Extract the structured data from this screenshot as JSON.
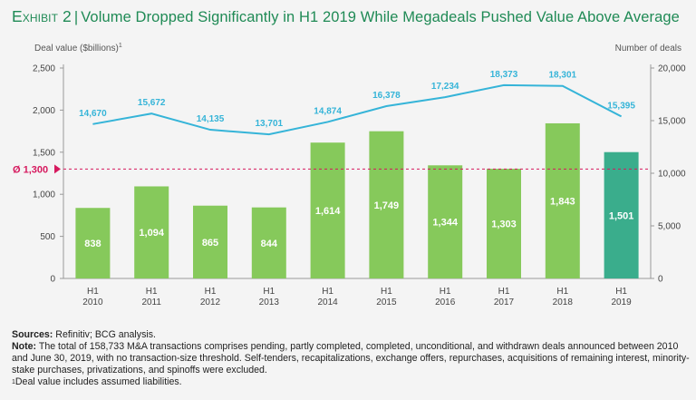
{
  "header": {
    "exhibit": "Exhibit 2",
    "separator": "|",
    "title": "Volume Dropped Significantly in H1 2019 While Megadeals Pushed Value Above Average"
  },
  "chart_data": {
    "type": "bar",
    "categories": [
      [
        "H1",
        "2010"
      ],
      [
        "H1",
        "2011"
      ],
      [
        "H1",
        "2012"
      ],
      [
        "H1",
        "2013"
      ],
      [
        "H1",
        "2014"
      ],
      [
        "H1",
        "2015"
      ],
      [
        "H1",
        "2016"
      ],
      [
        "H1",
        "2017"
      ],
      [
        "H1",
        "2018"
      ],
      [
        "H1",
        "2019"
      ]
    ],
    "series": [
      {
        "name": "Deal value ($billions)",
        "kind": "bar",
        "axis": "left",
        "values": [
          838,
          1094,
          865,
          844,
          1614,
          1749,
          1344,
          1303,
          1843,
          1501
        ],
        "labels": [
          "838",
          "1,094",
          "865",
          "844",
          "1,614",
          "1,749",
          "1,344",
          "1,303",
          "1,843",
          "1,501"
        ],
        "color": "#86c95b",
        "highlight_color": "#3aad8c",
        "highlight_index": 9
      },
      {
        "name": "Number of deals",
        "kind": "line",
        "axis": "right",
        "values": [
          14670,
          15672,
          14135,
          13701,
          14874,
          16378,
          17234,
          18373,
          18301,
          15395
        ],
        "labels": [
          "14,670",
          "15,672",
          "14,135",
          "13,701",
          "14,874",
          "16,378",
          "17,234",
          "18,373",
          "18,301",
          "15,395"
        ],
        "color": "#35b4d8"
      }
    ],
    "left_axis": {
      "label": "Deal value ($billions)",
      "label_sup": "1",
      "range": [
        0,
        2500
      ],
      "ticks": [
        0,
        500,
        1000,
        1500,
        2000,
        2500
      ],
      "tick_labels": [
        "0",
        "500",
        "1,000",
        "1,500",
        "2,000",
        "2,500"
      ]
    },
    "right_axis": {
      "label": "Number of deals",
      "range": [
        0,
        20000
      ],
      "ticks": [
        0,
        5000,
        10000,
        15000,
        20000
      ],
      "tick_labels": [
        "0",
        "5,000",
        "10,000",
        "15,000",
        "20,000"
      ]
    },
    "average": {
      "value": 1300,
      "label": "Ø 1,300",
      "color": "#d6195e"
    }
  },
  "notes": {
    "sources_label": "Sources:",
    "sources_text": "Refinitiv; BCG analysis.",
    "note_label": "Note:",
    "note_text": "The total of 158,733 M&A transactions comprises pending, partly completed, completed, unconditional, and withdrawn deals announced between 2010 and June 30, 2019, with no transaction-size threshold. Self-tenders, recapitalizations, exchange offers, repurchases, acquisitions of remaining interest, minority-stake purchases, privatizations, and spinoffs were excluded.",
    "footnote_mark": "1",
    "footnote_text": "Deal value includes assumed liabilities."
  }
}
